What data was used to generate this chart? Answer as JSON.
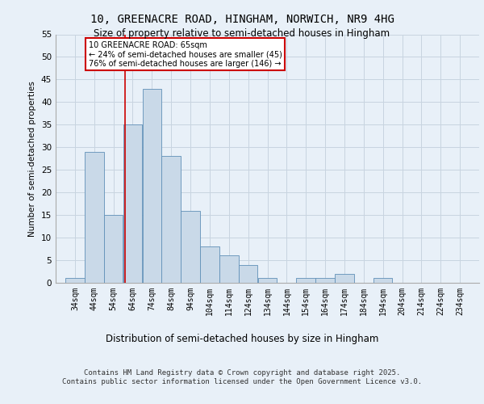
{
  "title1": "10, GREENACRE ROAD, HINGHAM, NORWICH, NR9 4HG",
  "title2": "Size of property relative to semi-detached houses in Hingham",
  "xlabel": "Distribution of semi-detached houses by size in Hingham",
  "ylabel": "Number of semi-detached properties",
  "bar_values": [
    1,
    29,
    15,
    35,
    43,
    28,
    16,
    8,
    6,
    4,
    1,
    0,
    1,
    1,
    2,
    0,
    1,
    0,
    0,
    0,
    0
  ],
  "bin_labels": [
    "34sqm",
    "44sqm",
    "54sqm",
    "64sqm",
    "74sqm",
    "84sqm",
    "94sqm",
    "104sqm",
    "114sqm",
    "124sqm",
    "134sqm",
    "144sqm",
    "154sqm",
    "164sqm",
    "174sqm",
    "184sqm",
    "194sqm",
    "204sqm",
    "214sqm",
    "224sqm",
    "234sqm"
  ],
  "bin_starts": [
    34,
    44,
    54,
    64,
    74,
    84,
    94,
    104,
    114,
    124,
    134,
    144,
    154,
    164,
    174,
    184,
    194,
    204,
    214,
    224,
    234
  ],
  "bar_color": "#c9d9e8",
  "bar_edge_color": "#6090b8",
  "grid_color": "#c8d4e0",
  "background_color": "#e8f0f8",
  "property_line_x": 65,
  "annotation_title": "10 GREENACRE ROAD: 65sqm",
  "annotation_line1": "← 24% of semi-detached houses are smaller (45)",
  "annotation_line2": "76% of semi-detached houses are larger (146) →",
  "annotation_box_color": "#ffffff",
  "annotation_border_color": "#cc0000",
  "property_line_color": "#cc0000",
  "ylim": [
    0,
    55
  ],
  "yticks": [
    0,
    5,
    10,
    15,
    20,
    25,
    30,
    35,
    40,
    45,
    50,
    55
  ],
  "footer_line1": "Contains HM Land Registry data © Crown copyright and database right 2025.",
  "footer_line2": "Contains public sector information licensed under the Open Government Licence v3.0.",
  "bin_width": 10
}
